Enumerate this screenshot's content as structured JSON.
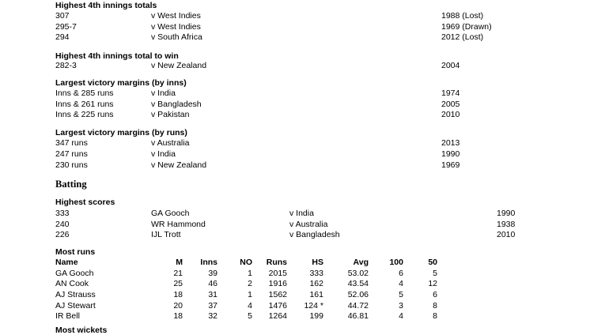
{
  "s1": {
    "heading": "Highest 4th innings totals",
    "rows": [
      [
        "307",
        "v West Indies",
        "1988 (Lost)"
      ],
      [
        "295-7",
        "v West Indies",
        "1969 (Drawn)"
      ],
      [
        "294",
        "v South Africa",
        "2012 (Lost)"
      ]
    ]
  },
  "s2": {
    "heading": "Highest 4th innings total to win",
    "rows": [
      [
        "282-3",
        "v New Zealand",
        "2004"
      ]
    ]
  },
  "s3": {
    "heading": "Largest victory margins (by inns)",
    "rows": [
      [
        "Inns & 285 runs",
        "v India",
        "1974"
      ],
      [
        "Inns & 261 runs",
        "v Bangladesh",
        "2005"
      ],
      [
        "Inns & 225 runs",
        "v Pakistan",
        "2010"
      ]
    ]
  },
  "s4": {
    "heading": "Largest victory margins (by runs)",
    "rows": [
      [
        "347 runs",
        "v Australia",
        "2013"
      ],
      [
        "247 runs",
        "v India",
        "1990"
      ],
      [
        "230 runs",
        "v New Zealand",
        "1969"
      ]
    ]
  },
  "batting": {
    "heading": "Batting",
    "highest": {
      "heading": "Highest scores",
      "rows": [
        [
          "333",
          "GA Gooch",
          "v India",
          "1990"
        ],
        [
          "240",
          "WR Hammond",
          "v Australia",
          "1938"
        ],
        [
          "226",
          "IJL Trott",
          "v Bangladesh",
          "2010"
        ]
      ]
    },
    "most_runs": {
      "heading": "Most runs",
      "columns": [
        "Name",
        "M",
        "Inns",
        "NO",
        "Runs",
        "HS",
        "Avg",
        "100",
        "50"
      ],
      "rows": [
        [
          "GA Gooch",
          "21",
          "39",
          "1",
          "2015",
          "333",
          "53.02",
          "6",
          "5"
        ],
        [
          "AN Cook",
          "25",
          "46",
          "2",
          "1916",
          "162",
          "43.54",
          "4",
          "12"
        ],
        [
          "AJ Strauss",
          "18",
          "31",
          "1",
          "1562",
          "161",
          "52.06",
          "5",
          "6"
        ],
        [
          "AJ Stewart",
          "20",
          "37",
          "4",
          "1476",
          "124 *",
          "44.72",
          "3",
          "8"
        ],
        [
          "IR Bell",
          "18",
          "32",
          "5",
          "1264",
          "199",
          "46.81",
          "4",
          "8"
        ]
      ]
    }
  },
  "next_heading": "Most wickets"
}
